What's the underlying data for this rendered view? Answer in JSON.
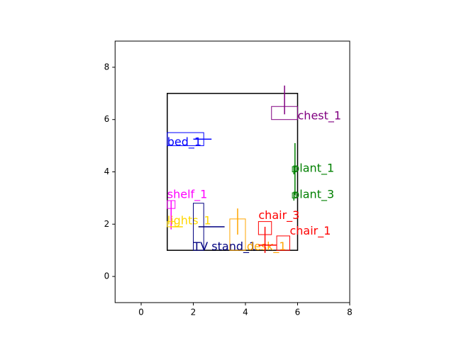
{
  "chart_data": {
    "type": "floorplan",
    "xlim": [
      -1,
      8
    ],
    "ylim": [
      -1,
      9
    ],
    "xticks": [
      0,
      2,
      4,
      6,
      8
    ],
    "yticks": [
      0,
      2,
      4,
      6,
      8
    ],
    "room": {
      "x": 1,
      "y": 1,
      "w": 5,
      "h": 6,
      "color": "#000000"
    },
    "objects": [
      {
        "name": "chest_1",
        "color": "#800080",
        "rect": [
          5,
          6,
          1,
          0.5
        ],
        "line": [
          5.5,
          6.2,
          5.5,
          7.3
        ],
        "label_xy": [
          6,
          6
        ]
      },
      {
        "name": "bed_1",
        "color": "#0000ff",
        "rect": [
          1,
          5,
          1.4,
          0.5
        ],
        "line": [
          2,
          5.25,
          2.7,
          5.25
        ],
        "label_xy": [
          1,
          5
        ]
      },
      {
        "name": "plant_1",
        "color": "#008000",
        "rect": [
          5.8,
          4,
          0.15,
          0.2
        ],
        "line": [
          5.9,
          4.1,
          5.9,
          5.1
        ],
        "label_xy": [
          5.8,
          4
        ]
      },
      {
        "name": "plant_3",
        "color": "#008000",
        "rect": [
          5.8,
          3,
          0.15,
          0.2
        ],
        "line": [
          5.9,
          3.1,
          5.9,
          4.1
        ],
        "label_xy": [
          5.8,
          3
        ]
      },
      {
        "name": "shelf_1",
        "color": "#ff00ff",
        "rect": [
          1,
          2.6,
          0.3,
          0.3
        ],
        "line": [
          1.15,
          1.8,
          1.15,
          2.9
        ],
        "label_xy": [
          1,
          3
        ]
      },
      {
        "name": "lights_1",
        "color": "#ffd700",
        "rect": [
          1,
          1.9,
          0.3,
          0.2
        ],
        "line": [
          1.1,
          1.9,
          1.6,
          1.9
        ],
        "label_xy": [
          1,
          2
        ]
      },
      {
        "name": "TV stand_1",
        "color": "#000080",
        "rect": [
          2,
          1,
          0.4,
          1.8
        ],
        "line": [
          2.2,
          1.9,
          3.2,
          1.9
        ],
        "label_xy": [
          2,
          1
        ]
      },
      {
        "name": "desk_1",
        "color": "#ffa500",
        "rect": [
          3.4,
          1,
          0.6,
          1.2
        ],
        "line": [
          3.7,
          1.6,
          3.7,
          2.6
        ],
        "label_xy": [
          4.05,
          1
        ]
      },
      {
        "name": "chair_3",
        "color": "#ff0000",
        "rect": [
          4.5,
          1.6,
          0.5,
          0.5
        ],
        "line": [
          4.75,
          0.9,
          4.75,
          1.9
        ],
        "label_xy": [
          4.5,
          2.2
        ]
      },
      {
        "name": "chair_1",
        "color": "#ff0000",
        "rect": [
          5.2,
          1,
          0.5,
          0.55
        ],
        "line": [
          4.5,
          1.2,
          5.2,
          1.2
        ],
        "label_xy": [
          5.7,
          1.6
        ]
      }
    ]
  }
}
